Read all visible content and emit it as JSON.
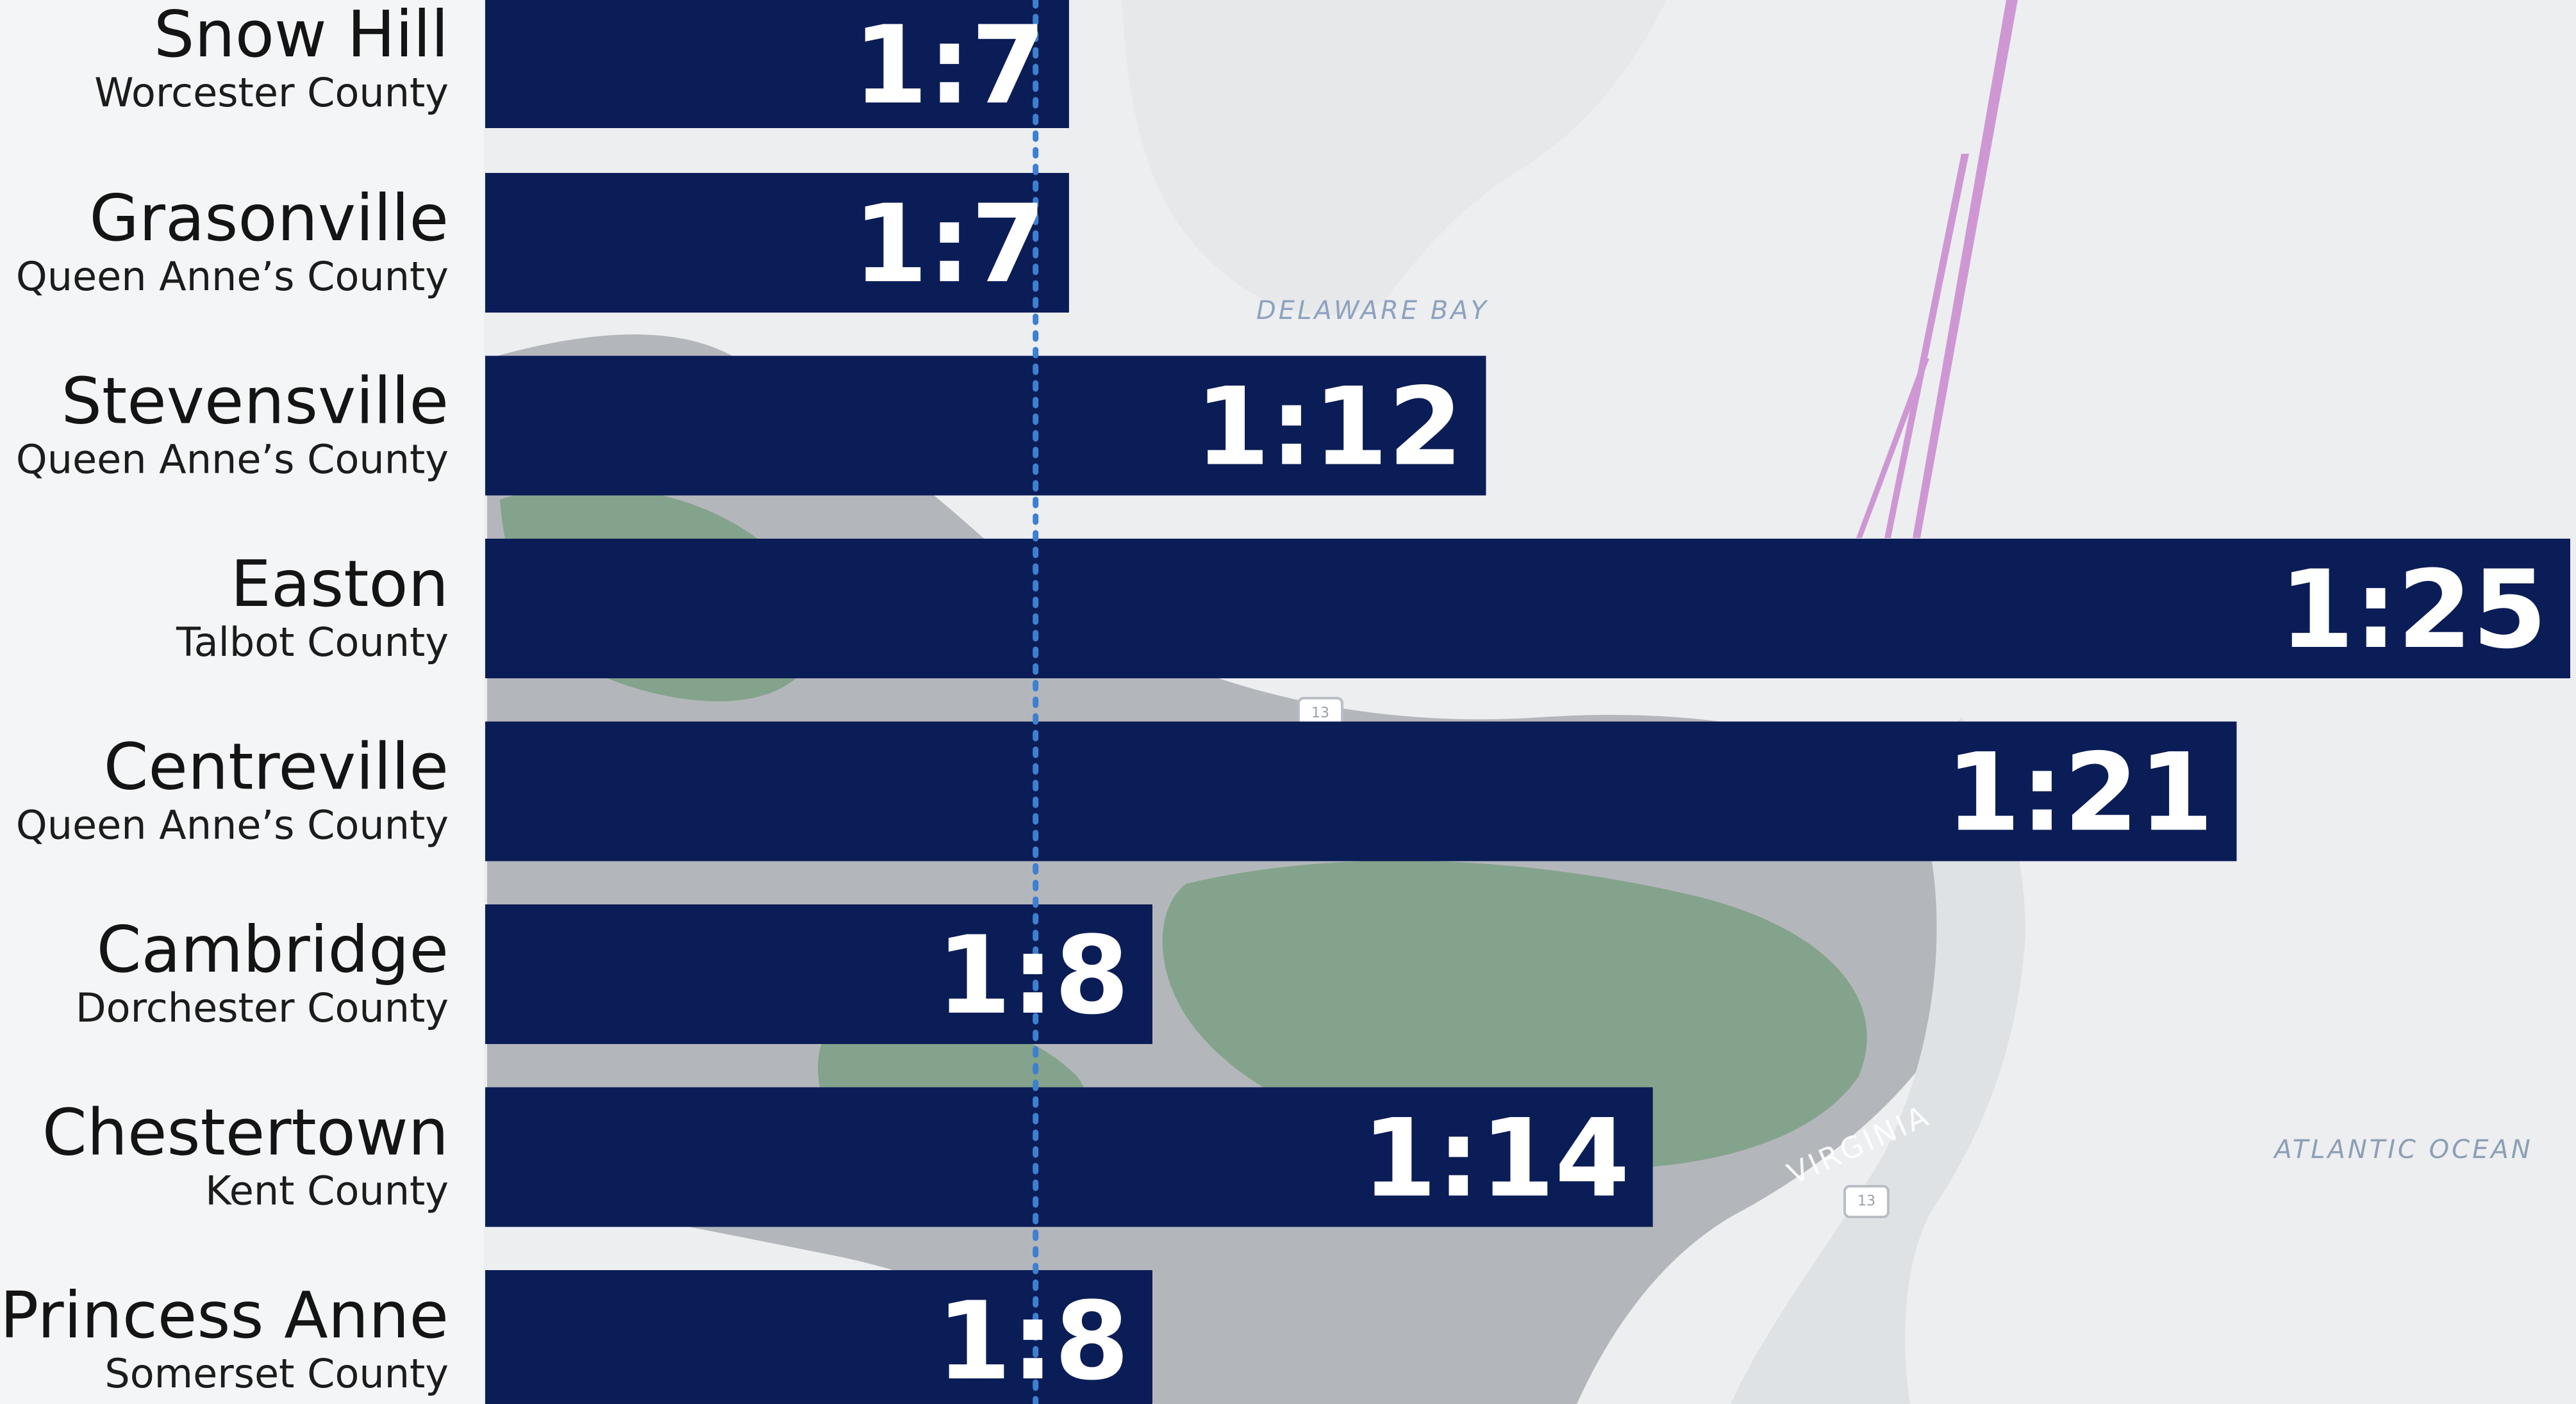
{
  "colors": {
    "bar": "#0b1d57",
    "bar_label": "#ffffff",
    "reference_line": "#3f7fd0",
    "city_text": "#141414",
    "county_text": "#1c1c1c"
  },
  "map": {
    "labels": {
      "bay": "DELAWARE BAY",
      "ocean": "ATLANTIC OCEAN",
      "state": "VIRGINIA"
    },
    "route_shields": [
      "13",
      "13"
    ]
  },
  "chart_data": {
    "type": "bar",
    "orientation": "horizontal",
    "title": "",
    "xlabel": "",
    "ylabel": "",
    "categories": [
      "Snow Hill",
      "Grasonville",
      "Stevensville",
      "Easton",
      "Centreville",
      "Cambridge",
      "Chestertown",
      "Princess Anne"
    ],
    "subcategories": [
      "Worcester County",
      "Queen Anne’s County",
      "Queen Anne’s County",
      "Talbot County",
      "Queen Anne’s County",
      "Dorchester County",
      "Kent County",
      "Somerset County"
    ],
    "values": [
      7,
      7,
      12,
      25,
      21,
      8,
      14,
      8
    ],
    "data_labels": [
      "1:7",
      "1:7",
      "1:12",
      "1:25",
      "1:21",
      "1:8",
      "1:14",
      "1:8"
    ],
    "xlim": [
      0,
      25
    ],
    "reference_value": 6,
    "grid": false,
    "legend": "none"
  }
}
